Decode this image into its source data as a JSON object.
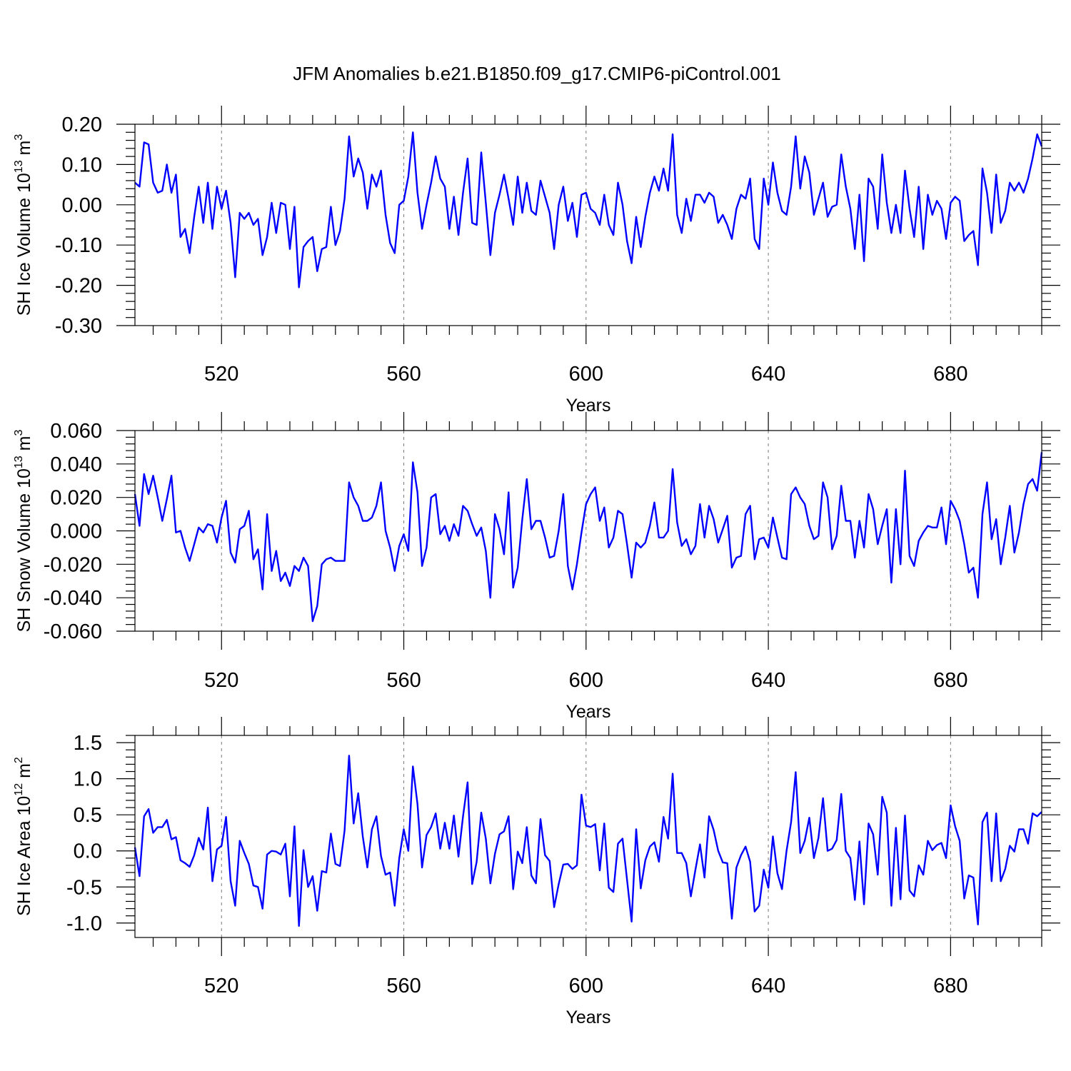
{
  "title": "JFM Anomalies b.e21.B1850.f09_g17.CMIP6-piControl.001",
  "colors": {
    "line": "#0000ff",
    "axes": "#000000",
    "grid": "#777777"
  },
  "chart_data": [
    {
      "type": "line",
      "ylabel": "SH Ice Volume 10",
      "ylabel_exp": "13",
      "ylabel_unit": "m",
      "ylabel_unit_exp": "3",
      "xlabel": "Years",
      "xlim": [
        501,
        700
      ],
      "ylim": [
        -0.3,
        0.2
      ],
      "yticks": [
        -0.3,
        -0.2,
        -0.1,
        0.0,
        0.1,
        0.2
      ],
      "ytick_labels": [
        "-0.30",
        "-0.20",
        "-0.10",
        "0.00",
        "0.10",
        "0.20"
      ],
      "xticks": [
        520,
        560,
        600,
        640,
        680
      ],
      "xtick_labels": [
        "520",
        "560",
        "600",
        "640",
        "680"
      ],
      "grid": "vertical dashed at major x ticks",
      "series": [
        {
          "name": "SH Ice Volume",
          "x_start": 501,
          "values": [
            0.055,
            0.045,
            0.155,
            0.15,
            0.055,
            0.03,
            0.035,
            0.1,
            0.03,
            0.075,
            -0.08,
            -0.06,
            -0.12,
            -0.03,
            0.045,
            -0.045,
            0.055,
            -0.06,
            0.045,
            -0.01,
            0.035,
            -0.045,
            -0.18,
            -0.02,
            -0.035,
            -0.02,
            -0.05,
            -0.035,
            -0.125,
            -0.08,
            0.005,
            -0.07,
            0.005,
            0.0,
            -0.11,
            -0.005,
            -0.205,
            -0.105,
            -0.09,
            -0.08,
            -0.165,
            -0.11,
            -0.105,
            -0.005,
            -0.1,
            -0.065,
            0.015,
            0.17,
            0.07,
            0.115,
            0.08,
            -0.01,
            0.075,
            0.045,
            0.085,
            -0.025,
            -0.095,
            -0.12,
            0.0,
            0.01,
            0.07,
            0.18,
            0.03,
            -0.06,
            0.0,
            0.055,
            0.12,
            0.065,
            0.045,
            -0.06,
            0.02,
            -0.075,
            0.03,
            0.115,
            -0.045,
            -0.05,
            0.13,
            0.005,
            -0.125,
            -0.02,
            0.025,
            0.075,
            0.015,
            -0.05,
            0.07,
            -0.02,
            0.055,
            -0.015,
            -0.025,
            0.06,
            0.02,
            -0.02,
            -0.11,
            0.0,
            0.045,
            -0.04,
            0.005,
            -0.08,
            0.025,
            0.03,
            -0.01,
            -0.02,
            -0.05,
            0.025,
            -0.05,
            -0.075,
            0.055,
            0.0,
            -0.09,
            -0.145,
            -0.03,
            -0.105,
            -0.03,
            0.03,
            0.07,
            0.035,
            0.09,
            0.035,
            0.175,
            -0.025,
            -0.07,
            0.015,
            -0.04,
            0.025,
            0.025,
            0.005,
            0.03,
            0.02,
            -0.045,
            -0.025,
            -0.05,
            -0.085,
            -0.01,
            0.025,
            0.015,
            0.065,
            -0.085,
            -0.11,
            0.065,
            0.0,
            0.105,
            0.03,
            -0.015,
            -0.025,
            0.045,
            0.17,
            0.04,
            0.12,
            0.08,
            -0.025,
            0.015,
            0.055,
            -0.03,
            -0.005,
            0.0,
            0.125,
            0.045,
            -0.01,
            -0.11,
            0.025,
            -0.14,
            0.065,
            0.045,
            -0.06,
            0.125,
            0.005,
            -0.07,
            0.0,
            -0.07,
            0.085,
            -0.01,
            -0.08,
            0.045,
            -0.11,
            0.025,
            -0.025,
            0.01,
            -0.01,
            -0.085,
            0.005,
            0.02,
            0.01,
            -0.09,
            -0.075,
            -0.065,
            -0.15,
            0.09,
            0.03,
            -0.07,
            0.075,
            -0.045,
            -0.015,
            0.055,
            0.035,
            0.055,
            0.03,
            0.065,
            0.115,
            0.175,
            0.145
          ]
        }
      ]
    },
    {
      "type": "line",
      "ylabel": "SH Snow Volume 10",
      "ylabel_exp": "13",
      "ylabel_unit": "m",
      "ylabel_unit_exp": "3",
      "xlabel": "Years",
      "xlim": [
        501,
        700
      ],
      "ylim": [
        -0.06,
        0.06
      ],
      "yticks": [
        -0.06,
        -0.04,
        -0.02,
        0.0,
        0.02,
        0.04,
        0.06
      ],
      "ytick_labels": [
        "-0.060",
        "-0.040",
        "-0.020",
        "0.000",
        "0.020",
        "0.040",
        "0.060"
      ],
      "xticks": [
        520,
        560,
        600,
        640,
        680
      ],
      "xtick_labels": [
        "520",
        "560",
        "600",
        "640",
        "680"
      ],
      "grid": "vertical dashed at major x ticks",
      "series": [
        {
          "name": "SH Snow Volume",
          "x_start": 501,
          "values": [
            0.022,
            0.003,
            0.034,
            0.022,
            0.033,
            0.02,
            0.006,
            0.019,
            0.033,
            -0.001,
            0.0,
            -0.01,
            -0.018,
            -0.008,
            0.002,
            -0.001,
            0.004,
            0.003,
            -0.007,
            0.008,
            0.018,
            -0.013,
            -0.019,
            0.001,
            0.003,
            0.012,
            -0.017,
            -0.011,
            -0.035,
            0.01,
            -0.024,
            -0.012,
            -0.03,
            -0.025,
            -0.033,
            -0.021,
            -0.024,
            -0.016,
            -0.021,
            -0.054,
            -0.045,
            -0.02,
            -0.017,
            -0.016,
            -0.018,
            -0.018,
            -0.018,
            0.029,
            0.02,
            0.015,
            0.006,
            0.006,
            0.008,
            0.015,
            0.029,
            0.0,
            -0.01,
            -0.024,
            -0.009,
            -0.002,
            -0.012,
            0.041,
            0.023,
            -0.021,
            -0.01,
            0.02,
            0.022,
            -0.002,
            0.003,
            -0.006,
            0.004,
            -0.003,
            0.015,
            0.012,
            0.004,
            -0.003,
            0.002,
            -0.012,
            -0.04,
            0.01,
            0.001,
            -0.014,
            0.023,
            -0.034,
            -0.022,
            0.007,
            0.031,
            0.001,
            0.006,
            0.006,
            -0.004,
            -0.016,
            -0.015,
            0.0,
            0.022,
            -0.021,
            -0.035,
            -0.02,
            -0.001,
            0.016,
            0.022,
            0.026,
            0.006,
            0.014,
            -0.01,
            -0.004,
            0.012,
            0.01,
            -0.008,
            -0.028,
            -0.007,
            -0.01,
            -0.007,
            0.003,
            0.017,
            -0.004,
            -0.004,
            0.0,
            0.037,
            0.005,
            -0.009,
            -0.005,
            -0.014,
            -0.009,
            0.016,
            -0.004,
            0.015,
            0.007,
            -0.007,
            0.001,
            0.009,
            -0.022,
            -0.016,
            -0.015,
            0.01,
            0.015,
            -0.017,
            -0.005,
            -0.004,
            -0.01,
            0.008,
            -0.004,
            -0.016,
            -0.017,
            0.022,
            0.026,
            0.02,
            0.016,
            0.003,
            -0.005,
            -0.003,
            0.029,
            0.02,
            -0.011,
            -0.003,
            0.027,
            0.006,
            0.006,
            -0.016,
            0.006,
            -0.01,
            0.022,
            0.013,
            -0.008,
            0.003,
            0.013,
            -0.031,
            0.013,
            -0.02,
            0.036,
            -0.015,
            -0.021,
            -0.006,
            -0.001,
            0.003,
            0.002,
            0.002,
            0.014,
            -0.008,
            0.018,
            0.013,
            0.006,
            -0.008,
            -0.025,
            -0.022,
            -0.04,
            0.01,
            0.029,
            -0.005,
            0.007,
            -0.02,
            -0.004,
            0.015,
            -0.013,
            -0.001,
            0.016,
            0.028,
            0.031,
            0.024,
            0.047
          ]
        }
      ]
    },
    {
      "type": "line",
      "ylabel": "SH Ice Area 10",
      "ylabel_exp": "12",
      "ylabel_unit": "m",
      "ylabel_unit_exp": "2",
      "xlabel": "Years",
      "xlim": [
        501,
        700
      ],
      "ylim": [
        -1.2,
        1.6
      ],
      "yticks": [
        -1.0,
        -0.5,
        0.0,
        0.5,
        1.0,
        1.5
      ],
      "ytick_labels": [
        "-1.0",
        "-0.5",
        "0.0",
        "0.5",
        "1.0",
        "1.5"
      ],
      "xticks": [
        520,
        560,
        600,
        640,
        680
      ],
      "xtick_labels": [
        "520",
        "560",
        "600",
        "640",
        "680"
      ],
      "grid": "vertical dashed at major x ticks",
      "series": [
        {
          "name": "SH Ice Area",
          "x_start": 501,
          "values": [
            0.05,
            -0.35,
            0.48,
            0.58,
            0.25,
            0.33,
            0.33,
            0.43,
            0.16,
            0.19,
            -0.13,
            -0.17,
            -0.22,
            -0.06,
            0.18,
            0.02,
            0.6,
            -0.42,
            0.02,
            0.07,
            0.47,
            -0.42,
            -0.76,
            0.14,
            -0.03,
            -0.18,
            -0.48,
            -0.5,
            -0.8,
            -0.05,
            0.0,
            -0.01,
            -0.05,
            0.1,
            -0.63,
            0.34,
            -1.04,
            0.01,
            -0.5,
            -0.35,
            -0.83,
            -0.28,
            -0.3,
            0.24,
            -0.18,
            -0.21,
            0.28,
            1.32,
            0.38,
            0.8,
            0.2,
            -0.23,
            0.3,
            0.48,
            -0.07,
            -0.33,
            -0.3,
            -0.76,
            -0.1,
            0.3,
            0.0,
            1.17,
            0.65,
            -0.23,
            0.22,
            0.33,
            0.52,
            0.03,
            0.39,
            0.03,
            0.49,
            -0.08,
            0.48,
            0.95,
            -0.46,
            -0.15,
            0.53,
            0.17,
            -0.45,
            -0.04,
            0.23,
            0.27,
            0.48,
            -0.53,
            -0.01,
            -0.17,
            0.33,
            -0.34,
            -0.45,
            0.44,
            -0.06,
            -0.14,
            -0.78,
            -0.46,
            -0.19,
            -0.18,
            -0.25,
            -0.2,
            0.78,
            0.35,
            0.33,
            0.37,
            -0.27,
            0.38,
            -0.51,
            -0.57,
            0.1,
            0.17,
            -0.4,
            -0.98,
            0.3,
            -0.52,
            -0.13,
            0.06,
            0.12,
            -0.15,
            0.47,
            0.17,
            1.07,
            -0.03,
            -0.03,
            -0.17,
            -0.63,
            -0.26,
            0.09,
            -0.37,
            0.48,
            0.29,
            0.0,
            -0.16,
            -0.17,
            -0.94,
            -0.23,
            -0.06,
            0.06,
            -0.15,
            -0.84,
            -0.76,
            -0.26,
            -0.51,
            0.2,
            -0.31,
            -0.53,
            0.0,
            0.4,
            1.09,
            -0.03,
            0.14,
            0.46,
            -0.1,
            0.18,
            0.73,
            0.0,
            0.03,
            0.15,
            0.79,
            0.0,
            -0.1,
            -0.68,
            0.13,
            -0.74,
            0.38,
            0.23,
            -0.33,
            0.75,
            0.53,
            -0.76,
            0.32,
            -0.67,
            0.49,
            -0.55,
            -0.63,
            -0.2,
            -0.33,
            0.14,
            0.01,
            0.08,
            0.11,
            -0.1,
            0.63,
            0.34,
            0.14,
            -0.66,
            -0.34,
            -0.37,
            -1.02,
            0.4,
            0.53,
            -0.42,
            0.52,
            -0.42,
            -0.25,
            0.07,
            -0.01,
            0.3,
            0.3,
            0.1,
            0.52,
            0.48,
            0.54
          ]
        }
      ]
    }
  ]
}
